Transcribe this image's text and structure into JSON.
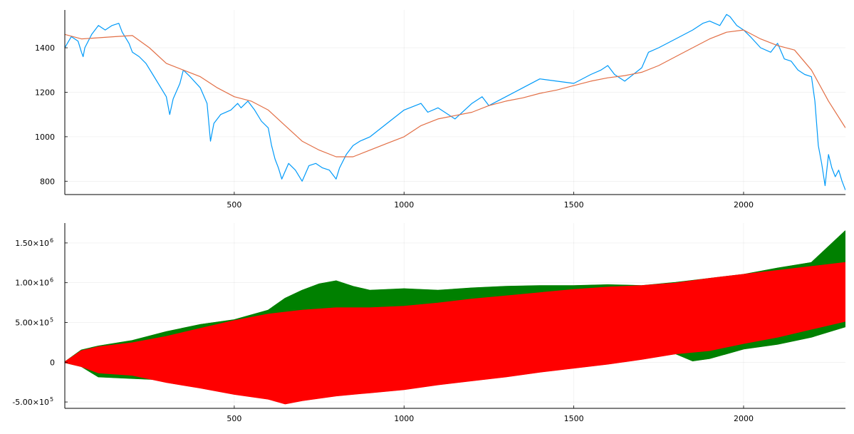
{
  "chart_data": [
    {
      "type": "line",
      "title": "",
      "xlabel": "",
      "ylabel": "",
      "xlim": [
        1,
        2300
      ],
      "ylim": [
        740,
        1570
      ],
      "grid": true,
      "legend": "none",
      "xticks": [
        500,
        1000,
        1500,
        2000
      ],
      "xtick_labels": [
        "500",
        "1000",
        "1500",
        "2000"
      ],
      "yticks": [
        800,
        1000,
        1200,
        1400
      ],
      "ytick_labels": [
        "800",
        "1000",
        "1200",
        "1400"
      ],
      "series": [
        {
          "color": "#009af9",
          "role": "price",
          "x": [
            1,
            20,
            40,
            50,
            55,
            60,
            80,
            100,
            120,
            140,
            160,
            170,
            190,
            200,
            220,
            240,
            260,
            280,
            300,
            310,
            320,
            340,
            350,
            370,
            400,
            420,
            430,
            440,
            460,
            490,
            510,
            520,
            540,
            560,
            580,
            600,
            610,
            620,
            630,
            640,
            660,
            680,
            700,
            720,
            740,
            760,
            780,
            800,
            810,
            830,
            850,
            870,
            900,
            950,
            1000,
            1050,
            1070,
            1100,
            1150,
            1200,
            1230,
            1250,
            1300,
            1350,
            1400,
            1450,
            1500,
            1550,
            1580,
            1600,
            1620,
            1650,
            1700,
            1720,
            1750,
            1800,
            1850,
            1880,
            1900,
            1930,
            1950,
            1960,
            1980,
            2000,
            2020,
            2050,
            2080,
            2100,
            2120,
            2140,
            2160,
            2180,
            2200,
            2210,
            2220,
            2230,
            2240,
            2250,
            2260,
            2270,
            2280,
            2290,
            2300
          ],
          "y": [
            1400,
            1450,
            1430,
            1380,
            1360,
            1400,
            1460,
            1500,
            1480,
            1500,
            1510,
            1470,
            1420,
            1380,
            1360,
            1330,
            1280,
            1230,
            1180,
            1100,
            1170,
            1240,
            1300,
            1270,
            1220,
            1150,
            980,
            1060,
            1100,
            1120,
            1150,
            1130,
            1160,
            1120,
            1070,
            1040,
            960,
            900,
            860,
            810,
            880,
            850,
            800,
            870,
            880,
            860,
            850,
            810,
            860,
            920,
            960,
            980,
            1000,
            1060,
            1120,
            1150,
            1110,
            1130,
            1080,
            1150,
            1180,
            1140,
            1180,
            1220,
            1260,
            1250,
            1240,
            1280,
            1300,
            1320,
            1280,
            1250,
            1310,
            1380,
            1400,
            1440,
            1480,
            1510,
            1520,
            1500,
            1550,
            1540,
            1500,
            1480,
            1450,
            1400,
            1380,
            1420,
            1350,
            1340,
            1300,
            1280,
            1270,
            1160,
            960,
            880,
            780,
            920,
            860,
            820,
            850,
            800,
            760
          ]
        },
        {
          "color": "#e26f46",
          "role": "moving average",
          "x": [
            1,
            50,
            100,
            150,
            200,
            250,
            300,
            350,
            400,
            450,
            500,
            550,
            600,
            650,
            700,
            750,
            800,
            850,
            900,
            950,
            1000,
            1050,
            1100,
            1150,
            1200,
            1250,
            1300,
            1350,
            1400,
            1450,
            1500,
            1550,
            1600,
            1650,
            1700,
            1750,
            1800,
            1850,
            1900,
            1950,
            2000,
            2050,
            2100,
            2150,
            2200,
            2250,
            2300
          ],
          "y": [
            1460,
            1440,
            1445,
            1450,
            1455,
            1400,
            1330,
            1300,
            1270,
            1220,
            1180,
            1160,
            1120,
            1050,
            980,
            940,
            910,
            910,
            940,
            970,
            1000,
            1050,
            1080,
            1095,
            1110,
            1140,
            1160,
            1175,
            1195,
            1210,
            1230,
            1250,
            1265,
            1275,
            1290,
            1320,
            1360,
            1400,
            1440,
            1470,
            1480,
            1440,
            1410,
            1390,
            1300,
            1160,
            1040
          ]
        }
      ]
    },
    {
      "type": "line",
      "title": "",
      "xlabel": "",
      "ylabel": "",
      "xlim": [
        1,
        2300
      ],
      "ylim": [
        -580000,
        1750000
      ],
      "grid": true,
      "legend": "none",
      "xticks": [
        500,
        1000,
        1500,
        2000
      ],
      "xtick_labels": [
        "500",
        "1000",
        "1500",
        "2000"
      ],
      "yticks": [
        -500000,
        0,
        500000,
        1000000,
        1500000
      ],
      "ytick_labels": [
        {
          "mantissa": "-5.00×10",
          "exp": "5"
        },
        {
          "mantissa": "0",
          "exp": ""
        },
        {
          "mantissa": "5.00×10",
          "exp": "5"
        },
        {
          "mantissa": "1.00×10",
          "exp": "6"
        },
        {
          "mantissa": "1.50×10",
          "exp": "6"
        }
      ],
      "series": [
        {
          "color": "#008000",
          "role": "simulation band upper",
          "x": [
            1,
            50,
            100,
            200,
            300,
            400,
            500,
            600,
            650,
            700,
            750,
            800,
            850,
            900,
            1000,
            1100,
            1200,
            1300,
            1400,
            1500,
            1600,
            1700,
            1800,
            1900,
            2000,
            2100,
            2200,
            2250,
            2300
          ],
          "y": [
            0,
            150000,
            200000,
            270000,
            380000,
            470000,
            530000,
            650000,
            800000,
            900000,
            980000,
            1020000,
            950000,
            900000,
            920000,
            900000,
            930000,
            950000,
            960000,
            960000,
            970000,
            960000,
            1000000,
            1050000,
            1100000,
            1180000,
            1250000,
            1450000,
            1650000
          ]
        },
        {
          "color": "#008000",
          "role": "simulation band lower",
          "x": [
            1,
            50,
            100,
            200,
            300,
            400,
            500,
            600,
            700,
            800,
            900,
            1000,
            1100,
            1200,
            1300,
            1400,
            1500,
            1600,
            1700,
            1800,
            1850,
            1900,
            2000,
            2100,
            2200,
            2300
          ],
          "y": [
            0,
            -50000,
            -180000,
            -200000,
            -220000,
            -300000,
            -350000,
            -400000,
            -380000,
            -300000,
            -250000,
            -200000,
            -170000,
            -130000,
            -100000,
            -60000,
            -20000,
            20000,
            60000,
            110000,
            20000,
            50000,
            170000,
            230000,
            320000,
            450000
          ]
        },
        {
          "color": "#ff0000",
          "role": "simulation band upper",
          "x": [
            1,
            50,
            100,
            200,
            300,
            400,
            500,
            600,
            700,
            800,
            900,
            1000,
            1100,
            1200,
            1300,
            1400,
            1500,
            1600,
            1700,
            1800,
            1900,
            2000,
            2100,
            2200,
            2300
          ],
          "y": [
            0,
            140000,
            190000,
            240000,
            320000,
            420000,
            520000,
            600000,
            650000,
            680000,
            680000,
            700000,
            740000,
            790000,
            830000,
            870000,
            910000,
            940000,
            960000,
            990000,
            1050000,
            1100000,
            1150000,
            1200000,
            1250000
          ]
        },
        {
          "color": "#ff0000",
          "role": "simulation band lower",
          "x": [
            1,
            50,
            100,
            200,
            300,
            400,
            500,
            600,
            650,
            700,
            800,
            900,
            1000,
            1100,
            1200,
            1300,
            1400,
            1500,
            1600,
            1700,
            1800,
            1900,
            2000,
            2100,
            2200,
            2300
          ],
          "y": [
            0,
            -50000,
            -130000,
            -160000,
            -250000,
            -320000,
            -400000,
            -460000,
            -520000,
            -480000,
            -420000,
            -380000,
            -340000,
            -280000,
            -230000,
            -180000,
            -120000,
            -70000,
            -20000,
            40000,
            110000,
            150000,
            240000,
            320000,
            420000,
            520000
          ]
        }
      ]
    }
  ]
}
